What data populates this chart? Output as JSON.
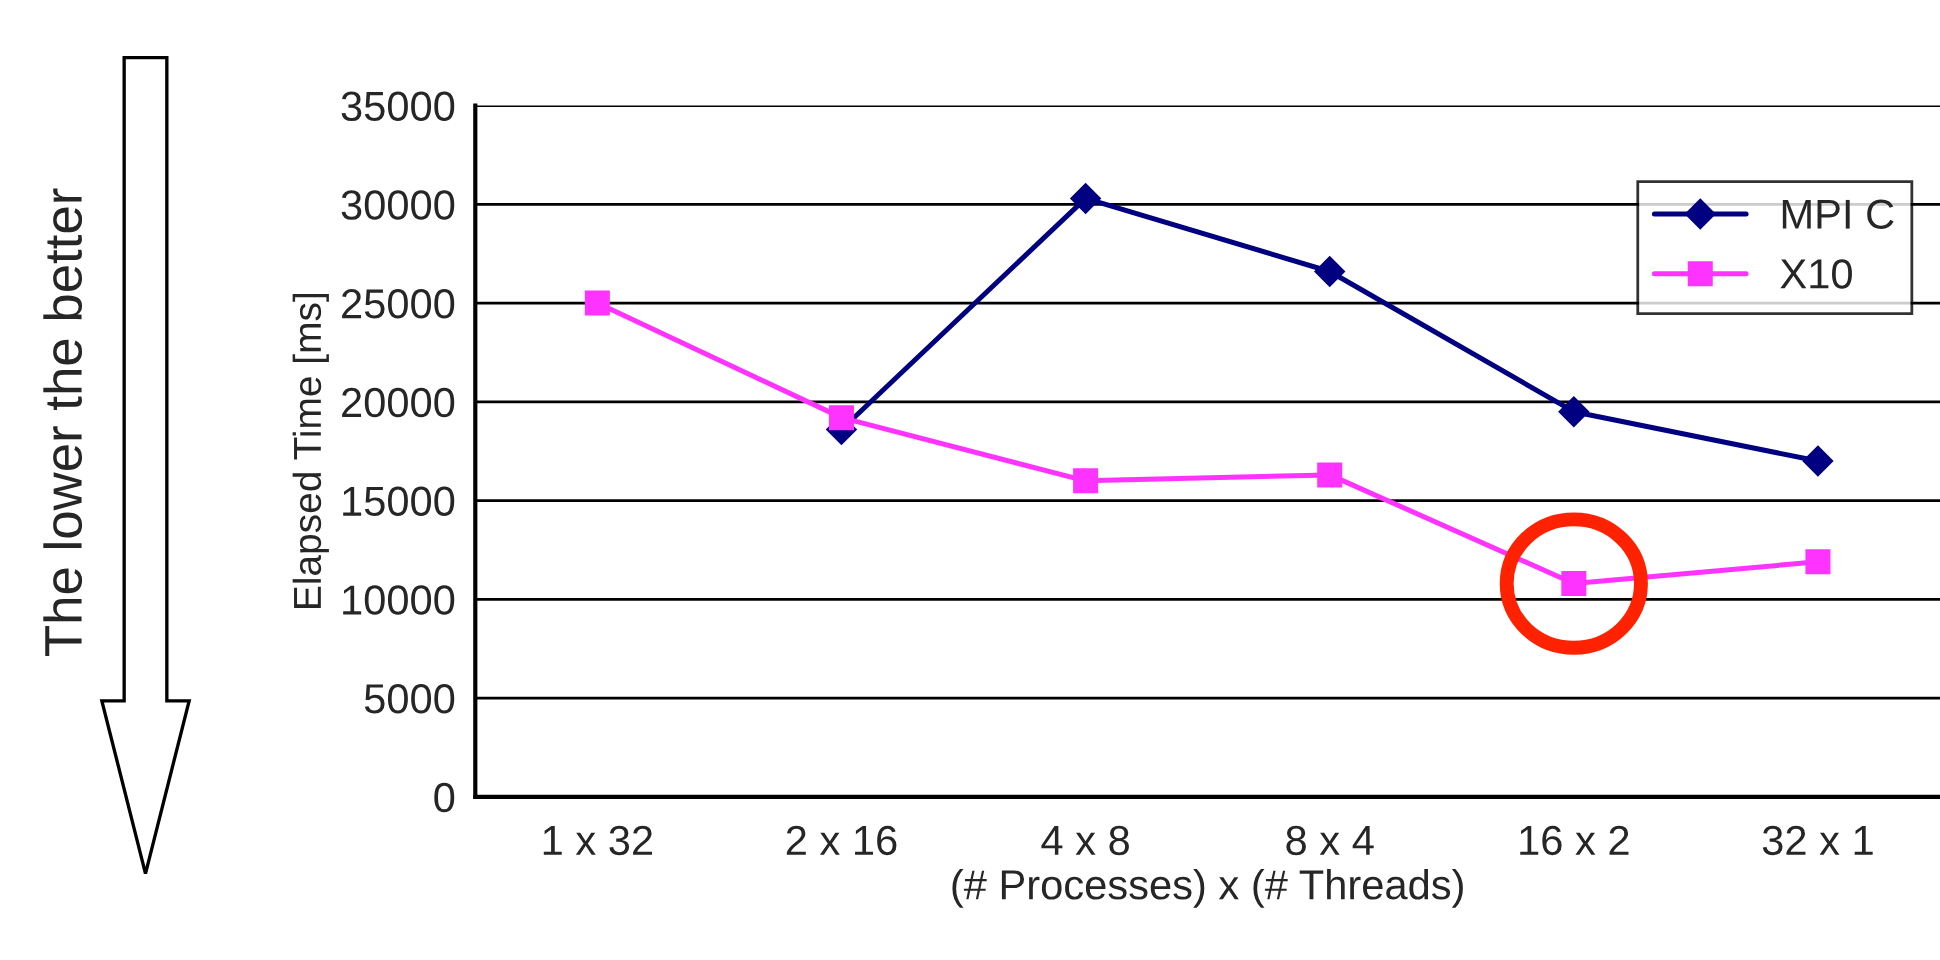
{
  "chart_data": {
    "type": "line",
    "xlabel": "(# Processes) x (# Threads)",
    "ylabel": "Elapsed Time [ms]",
    "categories": [
      "1 x 32",
      "2 x 16",
      "4 x 8",
      "8 x 4",
      "16 x 2",
      "32 x 1"
    ],
    "series": [
      {
        "name": "MPI C",
        "color": "#000080",
        "marker": "diamond",
        "values": [
          null,
          18600,
          30300,
          26600,
          19500,
          17000
        ]
      },
      {
        "name": "X10",
        "color": "#ff33ff",
        "marker": "square",
        "values": [
          25000,
          19200,
          16000,
          16300,
          10800,
          11900
        ]
      }
    ],
    "ylim": [
      0,
      35000
    ],
    "yticks": [
      0,
      5000,
      10000,
      15000,
      20000,
      25000,
      30000,
      35000
    ],
    "grid": "y",
    "legend": "top right",
    "line_style": "solid",
    "annotations": [
      "The lower the better"
    ]
  }
}
